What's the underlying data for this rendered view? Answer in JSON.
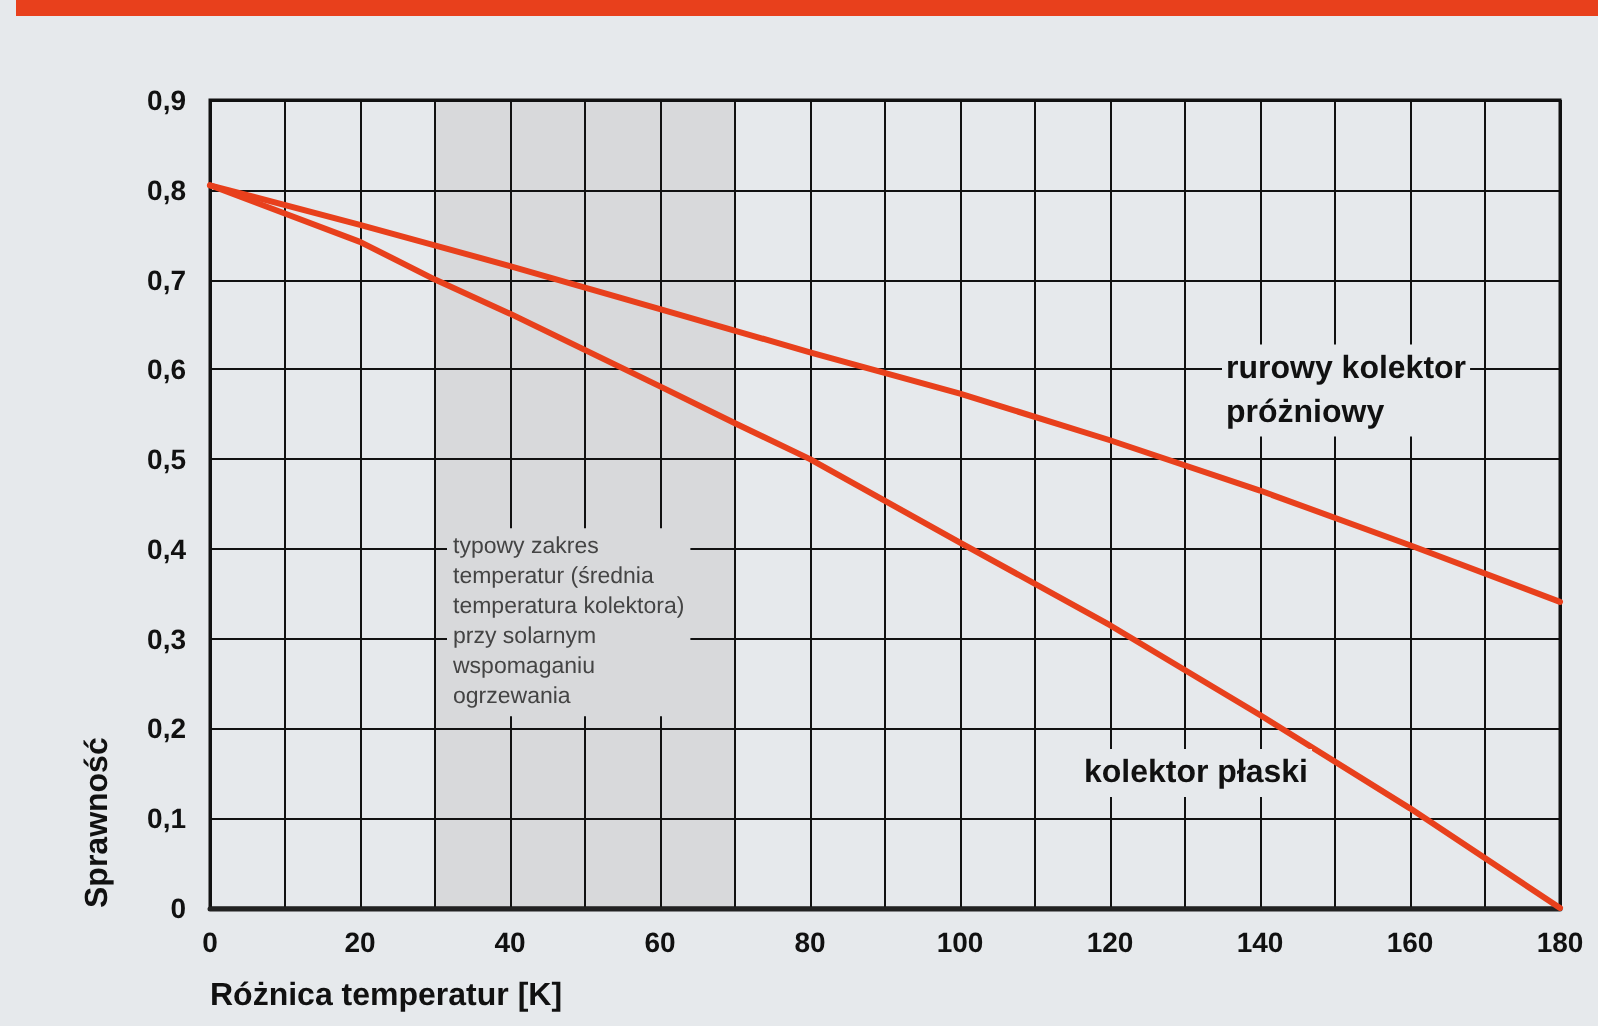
{
  "chart_data": {
    "type": "line",
    "xlabel": "Różnica temperatur [K]",
    "ylabel": "Sprawność",
    "series": [
      {
        "name": "rurowy kolektor próżniowy",
        "color": "#e8401c",
        "x": [
          0,
          20,
          40,
          60,
          80,
          100,
          120,
          140,
          160,
          180
        ],
        "values": [
          0.805,
          0.761,
          0.715,
          0.667,
          0.619,
          0.573,
          0.521,
          0.465,
          0.404,
          0.341
        ]
      },
      {
        "name": "kolektor płaski",
        "color": "#e8401c",
        "x": [
          0,
          20,
          30,
          40,
          60,
          70,
          80,
          100,
          120,
          140,
          160,
          180
        ],
        "values": [
          0.805,
          0.742,
          0.7,
          0.662,
          0.581,
          0.54,
          0.5,
          0.407,
          0.315,
          0.215,
          0.111,
          0
        ]
      }
    ],
    "xlim": [
      0,
      180
    ],
    "ylim": [
      0,
      0.9
    ],
    "xticks": [
      0,
      {
        "value": 10,
        "label": null
      },
      20,
      {
        "value": 30,
        "label": null
      },
      40,
      {
        "value": 50,
        "label": null
      },
      60,
      {
        "value": 70,
        "label": null
      },
      80,
      {
        "value": 90,
        "label": null
      },
      100,
      {
        "value": 110,
        "label": null
      },
      120,
      {
        "value": 130,
        "label": null
      },
      140,
      {
        "value": 150,
        "label": null
      },
      160,
      {
        "value": 170,
        "label": null
      },
      180
    ],
    "yticks": [
      {
        "value": 0,
        "label": "0"
      },
      {
        "value": 0.1,
        "label": "0,1"
      },
      {
        "value": 0.2,
        "label": "0,2"
      },
      {
        "value": 0.3,
        "label": "0,3"
      },
      {
        "value": 0.4,
        "label": "0,4"
      },
      {
        "value": 0.5,
        "label": "0,5"
      },
      {
        "value": 0.6,
        "label": "0,6"
      },
      {
        "value": 0.7,
        "label": "0,7"
      },
      {
        "value": 0.8,
        "label": "0,8"
      },
      {
        "value": 0.9,
        "label": "0,9"
      }
    ],
    "bands": [
      {
        "axis": "x",
        "from": 30,
        "to": 70,
        "color": "#d8d9db",
        "label": "typowy zakres\ntemperatur (średnia\ntemperatura kolektora)\nprzy solarnym\nwspomaganiu\nogrzewania"
      }
    ],
    "grid": true,
    "legend": false,
    "marker": "none",
    "line_style": "solid"
  }
}
